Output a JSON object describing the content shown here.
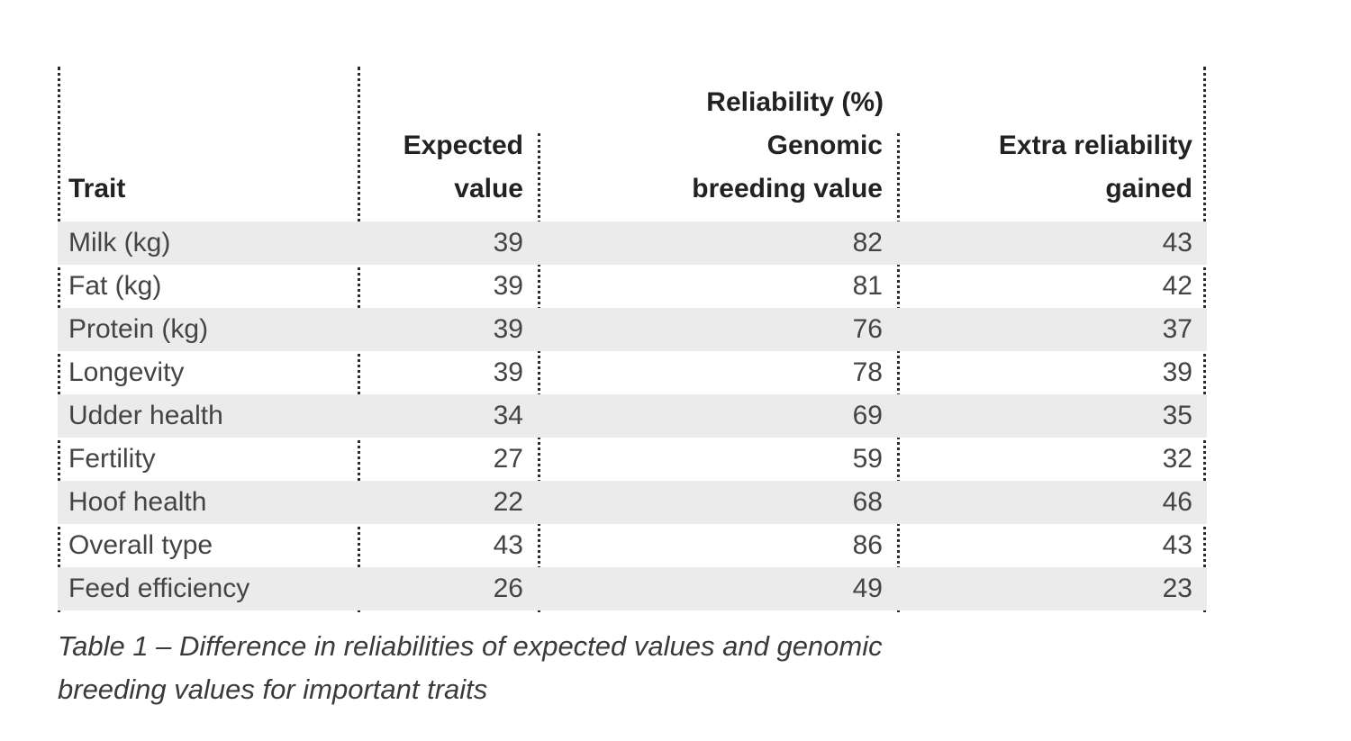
{
  "table": {
    "group_header": "Reliability (%)",
    "columns": [
      {
        "line1": "",
        "line2": "Trait"
      },
      {
        "line1": "Expected",
        "line2": "value"
      },
      {
        "line1": "Genomic",
        "line2": "breeding value"
      },
      {
        "line1": "Extra reliability",
        "line2": "gained"
      }
    ],
    "rows": [
      {
        "trait": "Milk (kg)",
        "expected": "39",
        "genomic": "82",
        "extra": "43"
      },
      {
        "trait": "Fat (kg)",
        "expected": "39",
        "genomic": "81",
        "extra": "42"
      },
      {
        "trait": "Protein (kg)",
        "expected": "39",
        "genomic": "76",
        "extra": "37"
      },
      {
        "trait": "Longevity",
        "expected": "39",
        "genomic": "78",
        "extra": "39"
      },
      {
        "trait": "Udder health",
        "expected": "34",
        "genomic": "69",
        "extra": "35"
      },
      {
        "trait": "Fertility",
        "expected": "27",
        "genomic": "59",
        "extra": "32"
      },
      {
        "trait": "Hoof health",
        "expected": "22",
        "genomic": "68",
        "extra": "46"
      },
      {
        "trait": "Overall type",
        "expected": "43",
        "genomic": "86",
        "extra": "43"
      },
      {
        "trait": "Feed efficiency",
        "expected": "26",
        "genomic": "49",
        "extra": "23"
      }
    ],
    "shade_color": "#ebebeb"
  },
  "caption": {
    "line1": "Table 1 – Difference in reliabilities of expected values and genomic",
    "line2": "breeding values for important traits"
  }
}
